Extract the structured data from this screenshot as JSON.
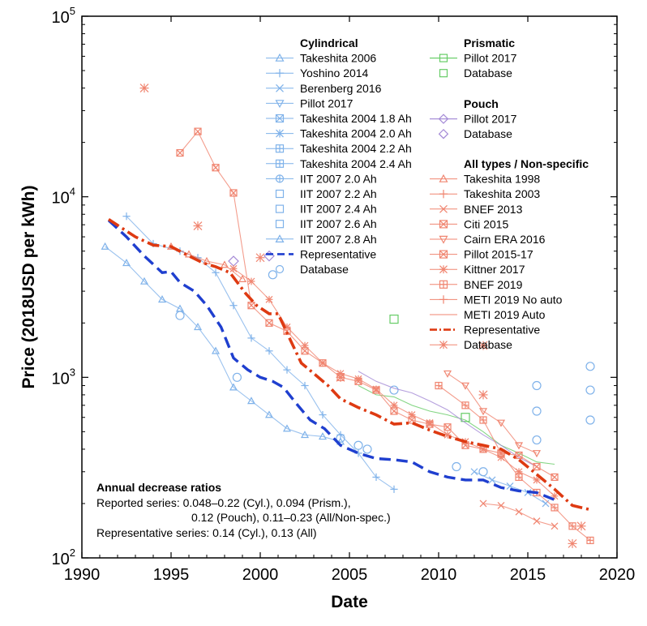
{
  "chart_data": {
    "type": "line",
    "xlabel": "Date",
    "ylabel": "Price (2018USD per kWh)",
    "xlim": [
      1990,
      2020
    ],
    "ylim": [
      100,
      100000
    ],
    "y_scale": "log",
    "x_ticks": [
      1990,
      1995,
      2000,
      2005,
      2010,
      2015,
      2020
    ],
    "y_ticks": [
      {
        "value": 100,
        "base": "10",
        "exp": "2"
      },
      {
        "value": 1000,
        "base": "10",
        "exp": "3"
      },
      {
        "value": 10000,
        "base": "10",
        "exp": "4"
      },
      {
        "value": 100000,
        "base": "10",
        "exp": "5"
      }
    ],
    "colors": {
      "cyl": "#7fb2ea",
      "cyl_rep": "#1f3fcf",
      "all": "#f08570",
      "all_rep": "#de3a12",
      "prism": "#66cc66",
      "pouch": "#a48ad6"
    },
    "legend": {
      "placement": "top-center",
      "cylindrical": {
        "title": "Cylindrical",
        "items": [
          {
            "label": "Takeshita 2006",
            "marker": "triangle"
          },
          {
            "label": "Yoshino 2014",
            "marker": "plus"
          },
          {
            "label": "Berenberg 2016",
            "marker": "x"
          },
          {
            "label": "Pillot 2017",
            "marker": "triangle-down"
          },
          {
            "label": "Takeshita 2004 1.8 Ah",
            "marker": "square-x"
          },
          {
            "label": "Takeshita 2004 2.0 Ah",
            "marker": "star"
          },
          {
            "label": "Takeshita 2004 2.2 Ah",
            "marker": "square-plus"
          },
          {
            "label": "Takeshita 2004 2.4 Ah",
            "marker": "square-plus"
          },
          {
            "label": "IIT 2007 2.0 Ah",
            "marker": "circle-plus"
          },
          {
            "label": "IIT 2007 2.2 Ah",
            "marker": "square"
          },
          {
            "label": "IIT 2007 2.4 Ah",
            "marker": "square"
          },
          {
            "label": "IIT 2007 2.6 Ah",
            "marker": "square"
          },
          {
            "label": "IIT 2007 2.8 Ah",
            "marker": "triangle"
          },
          {
            "label": "Representative",
            "marker": "dash"
          },
          {
            "label": "Database",
            "marker": "circle"
          }
        ]
      },
      "prismatic": {
        "title": "Prismatic",
        "items": [
          {
            "label": "Pillot 2017",
            "marker": "square-line"
          },
          {
            "label": "Database",
            "marker": "square"
          }
        ]
      },
      "pouch": {
        "title": "Pouch",
        "items": [
          {
            "label": "Pillot 2017",
            "marker": "diamond-line"
          },
          {
            "label": "Database",
            "marker": "diamond"
          }
        ]
      },
      "all": {
        "title": "All types / Non-specific",
        "items": [
          {
            "label": "Takeshita 1998",
            "marker": "triangle"
          },
          {
            "label": "Takeshita 2003",
            "marker": "plus"
          },
          {
            "label": "BNEF 2013",
            "marker": "x"
          },
          {
            "label": "Citi 2015",
            "marker": "square-x"
          },
          {
            "label": "Cairn ERA 2016",
            "marker": "triangle-down"
          },
          {
            "label": "Pillot 2015-17",
            "marker": "square-x"
          },
          {
            "label": "Kittner 2017",
            "marker": "star"
          },
          {
            "label": "BNEF 2019",
            "marker": "square-plus"
          },
          {
            "label": "METI 2019 No auto",
            "marker": "plus"
          },
          {
            "label": "METI 2019 Auto",
            "marker": "none"
          },
          {
            "label": "Representative",
            "marker": "dashdot"
          },
          {
            "label": "Database",
            "marker": "star"
          }
        ]
      }
    },
    "annotation": {
      "title": "Annual decrease ratios",
      "lines": [
        "Reported series: 0.048–0.22 (Cyl.), 0.094 (Prism.),",
        "0.12 (Pouch), 0.11–0.23 (All/Non-spec.)",
        "Representative series: 0.14 (Cyl.), 0.13 (All)"
      ]
    },
    "series": [
      {
        "name": "Representative",
        "group": "cylindrical",
        "style": "dash",
        "points": [
          [
            1991.5,
            7400
          ],
          [
            1992.5,
            6000
          ],
          [
            1993.5,
            4700
          ],
          [
            1994.5,
            3800
          ],
          [
            1995.0,
            3850
          ],
          [
            1995.5,
            3350
          ],
          [
            1996.3,
            3000
          ],
          [
            1997.0,
            2500
          ],
          [
            1997.8,
            1900
          ],
          [
            1998.5,
            1280
          ],
          [
            1999.3,
            1100
          ],
          [
            2000.0,
            1000
          ],
          [
            2000.7,
            950
          ],
          [
            2001.3,
            880
          ],
          [
            2002.0,
            720
          ],
          [
            2002.8,
            580
          ],
          [
            2003.6,
            520
          ],
          [
            2004.5,
            420
          ],
          [
            2005.5,
            380
          ],
          [
            2006.5,
            355
          ],
          [
            2007.5,
            350
          ],
          [
            2008.5,
            340
          ],
          [
            2009.5,
            300
          ],
          [
            2010.5,
            280
          ],
          [
            2011.5,
            270
          ],
          [
            2012.5,
            270
          ],
          [
            2013.5,
            245
          ],
          [
            2014.5,
            235
          ],
          [
            2015.5,
            230
          ],
          [
            2016.5,
            210
          ]
        ]
      },
      {
        "name": "Representative",
        "group": "all",
        "style": "dashdot",
        "points": [
          [
            1991.5,
            7500
          ],
          [
            1993.0,
            6000
          ],
          [
            1994.0,
            5400
          ],
          [
            1995.0,
            5300
          ],
          [
            1996.0,
            4700
          ],
          [
            1996.8,
            4300
          ],
          [
            1997.5,
            4100
          ],
          [
            1998.3,
            3800
          ],
          [
            1999.2,
            2900
          ],
          [
            1999.8,
            2500
          ],
          [
            2000.5,
            2250
          ],
          [
            2001.0,
            2250
          ],
          [
            2001.7,
            1600
          ],
          [
            2002.3,
            1200
          ],
          [
            2003.0,
            1050
          ],
          [
            2003.8,
            900
          ],
          [
            2004.5,
            760
          ],
          [
            2005.5,
            680
          ],
          [
            2006.5,
            620
          ],
          [
            2007.5,
            550
          ],
          [
            2008.5,
            560
          ],
          [
            2009.5,
            510
          ],
          [
            2010.5,
            470
          ],
          [
            2011.5,
            440
          ],
          [
            2012.5,
            420
          ],
          [
            2013.5,
            400
          ],
          [
            2014.5,
            350
          ],
          [
            2015.5,
            290
          ],
          [
            2016.5,
            240
          ],
          [
            2017.5,
            195
          ],
          [
            2018.5,
            185
          ]
        ]
      },
      {
        "name": "Takeshita 2006",
        "group": "cylindrical",
        "style": "thin",
        "points": [
          [
            1991.3,
            5300
          ],
          [
            1992.5,
            4300
          ],
          [
            1993.5,
            3400
          ],
          [
            1994.5,
            2700
          ],
          [
            1995.5,
            2400
          ],
          [
            1996.5,
            1900
          ],
          [
            1997.5,
            1400
          ],
          [
            1998.5,
            880
          ],
          [
            1999.5,
            740
          ],
          [
            2000.5,
            620
          ],
          [
            2001.5,
            520
          ],
          [
            2002.5,
            480
          ],
          [
            2003.5,
            470
          ],
          [
            2004.5,
            440
          ]
        ]
      },
      {
        "name": "Yoshino 2014",
        "group": "cylindrical",
        "style": "thin",
        "points": [
          [
            1992.5,
            7800
          ],
          [
            1994.0,
            5500
          ],
          [
            1995.5,
            5000
          ],
          [
            1996.5,
            4600
          ],
          [
            1997.5,
            3800
          ],
          [
            1998.5,
            2500
          ],
          [
            1999.5,
            1650
          ],
          [
            2000.5,
            1400
          ],
          [
            2001.5,
            1100
          ],
          [
            2002.5,
            900
          ],
          [
            2003.5,
            620
          ],
          [
            2004.5,
            480
          ],
          [
            2005.5,
            380
          ],
          [
            2006.5,
            280
          ],
          [
            2007.5,
            240
          ]
        ]
      },
      {
        "name": "Berenberg 2016",
        "group": "cylindrical",
        "style": "thin",
        "points": [
          [
            2012.0,
            300
          ],
          [
            2013.0,
            270
          ],
          [
            2014.0,
            250
          ],
          [
            2015.0,
            230
          ],
          [
            2016.0,
            200
          ]
        ]
      },
      {
        "name": "Cylindrical database",
        "group": "cylindrical",
        "style": "markers",
        "points": [
          [
            1995.5,
            2200
          ],
          [
            1998.7,
            1000
          ],
          [
            2000.7,
            3700
          ],
          [
            2004.5,
            460
          ],
          [
            2005.5,
            420
          ],
          [
            2006.0,
            400
          ],
          [
            2007.5,
            850
          ],
          [
            2011.0,
            320
          ],
          [
            2012.5,
            300
          ],
          [
            2015.5,
            900
          ],
          [
            2015.5,
            650
          ],
          [
            2015.5,
            450
          ],
          [
            2018.5,
            1150
          ],
          [
            2018.5,
            850
          ],
          [
            2018.5,
            580
          ]
        ]
      },
      {
        "name": "Pillot 2017",
        "group": "prismatic",
        "style": "thin",
        "points": [
          [
            2005.5,
            900
          ],
          [
            2006.5,
            800
          ],
          [
            2007.5,
            780
          ],
          [
            2008.5,
            700
          ],
          [
            2009.5,
            650
          ],
          [
            2010.5,
            620
          ],
          [
            2011.5,
            580
          ],
          [
            2012.5,
            500
          ],
          [
            2013.5,
            420
          ],
          [
            2014.5,
            380
          ],
          [
            2015.5,
            340
          ],
          [
            2016.5,
            330
          ]
        ]
      },
      {
        "name": "Prismatic database",
        "group": "prismatic",
        "style": "markers",
        "points": [
          [
            2007.5,
            2100
          ],
          [
            2011.5,
            600
          ]
        ]
      },
      {
        "name": "Pillot 2017",
        "group": "pouch",
        "style": "thin",
        "points": [
          [
            2005.5,
            1080
          ],
          [
            2006.5,
            950
          ],
          [
            2007.5,
            870
          ],
          [
            2008.5,
            820
          ],
          [
            2009.5,
            740
          ],
          [
            2010.5,
            660
          ],
          [
            2011.5,
            560
          ],
          [
            2012.5,
            480
          ],
          [
            2013.5,
            420
          ],
          [
            2014.5,
            360
          ],
          [
            2015.5,
            320
          ]
        ]
      },
      {
        "name": "Pouch database",
        "group": "pouch",
        "style": "markers",
        "points": [
          [
            1998.5,
            4400
          ],
          [
            2000.5,
            4700
          ]
        ]
      },
      {
        "name": "Citi 2015",
        "group": "all",
        "style": "thin",
        "points": [
          [
            1995.5,
            17500
          ],
          [
            1996.5,
            23000
          ],
          [
            1997.5,
            14500
          ],
          [
            1998.5,
            10500
          ],
          [
            1999.5,
            2500
          ],
          [
            2000.5,
            2000
          ],
          [
            2001.5,
            1800
          ],
          [
            2002.5,
            1400
          ],
          [
            2003.5,
            1200
          ],
          [
            2004.5,
            1000
          ],
          [
            2005.5,
            950
          ],
          [
            2006.5,
            850
          ],
          [
            2007.5,
            650
          ],
          [
            2008.5,
            580
          ],
          [
            2009.5,
            550
          ],
          [
            2010.5,
            530
          ],
          [
            2011.5,
            420
          ],
          [
            2012.5,
            400
          ],
          [
            2013.5,
            380
          ],
          [
            2014.5,
            370
          ],
          [
            2015.5,
            320
          ],
          [
            2016.5,
            280
          ]
        ]
      },
      {
        "name": "Takeshita 1998",
        "group": "all",
        "style": "thin",
        "points": [
          [
            1995.0,
            5300
          ],
          [
            1996.0,
            4800
          ],
          [
            1997.0,
            4400
          ],
          [
            1998.0,
            4200
          ],
          [
            1999.0,
            3500
          ]
        ]
      },
      {
        "name": "Kittner 2017",
        "group": "all",
        "style": "thin",
        "points": [
          [
            1998.5,
            4000
          ],
          [
            1999.5,
            3400
          ],
          [
            2000.5,
            2700
          ],
          [
            2001.5,
            1900
          ],
          [
            2002.5,
            1500
          ],
          [
            2003.5,
            1200
          ],
          [
            2004.5,
            1050
          ],
          [
            2005.5,
            980
          ],
          [
            2006.5,
            860
          ],
          [
            2007.5,
            700
          ],
          [
            2008.5,
            620
          ],
          [
            2009.5,
            560
          ],
          [
            2010.5,
            480
          ],
          [
            2011.5,
            440
          ],
          [
            2012.5,
            400
          ],
          [
            2013.5,
            360
          ],
          [
            2014.5,
            300
          ],
          [
            2015.5,
            270
          ],
          [
            2016.5,
            220
          ]
        ]
      },
      {
        "name": "Cairn ERA 2016",
        "group": "all",
        "style": "thin",
        "points": [
          [
            2010.5,
            1050
          ],
          [
            2011.5,
            900
          ],
          [
            2012.5,
            650
          ],
          [
            2013.5,
            560
          ],
          [
            2014.5,
            420
          ],
          [
            2015.5,
            380
          ]
        ]
      },
      {
        "name": "BNEF 2019",
        "group": "all",
        "style": "thin",
        "points": [
          [
            2010.0,
            900
          ],
          [
            2011.5,
            700
          ],
          [
            2012.5,
            580
          ],
          [
            2013.5,
            380
          ],
          [
            2014.5,
            280
          ],
          [
            2015.5,
            230
          ],
          [
            2016.5,
            190
          ],
          [
            2017.5,
            150
          ],
          [
            2018.5,
            125
          ]
        ]
      },
      {
        "name": "BNEF 2013",
        "group": "all",
        "style": "thin",
        "points": [
          [
            2012.5,
            200
          ],
          [
            2013.5,
            195
          ],
          [
            2014.5,
            180
          ],
          [
            2015.5,
            160
          ],
          [
            2016.5,
            150
          ]
        ]
      },
      {
        "name": "All types database",
        "group": "all",
        "style": "markers",
        "points": [
          [
            1993.5,
            40000
          ],
          [
            1996.5,
            6900
          ],
          [
            2000.0,
            4600
          ],
          [
            2004.5,
            1000
          ],
          [
            2012.5,
            1500
          ],
          [
            2012.5,
            800
          ],
          [
            2017.5,
            120
          ],
          [
            2018.0,
            150
          ]
        ]
      }
    ]
  }
}
